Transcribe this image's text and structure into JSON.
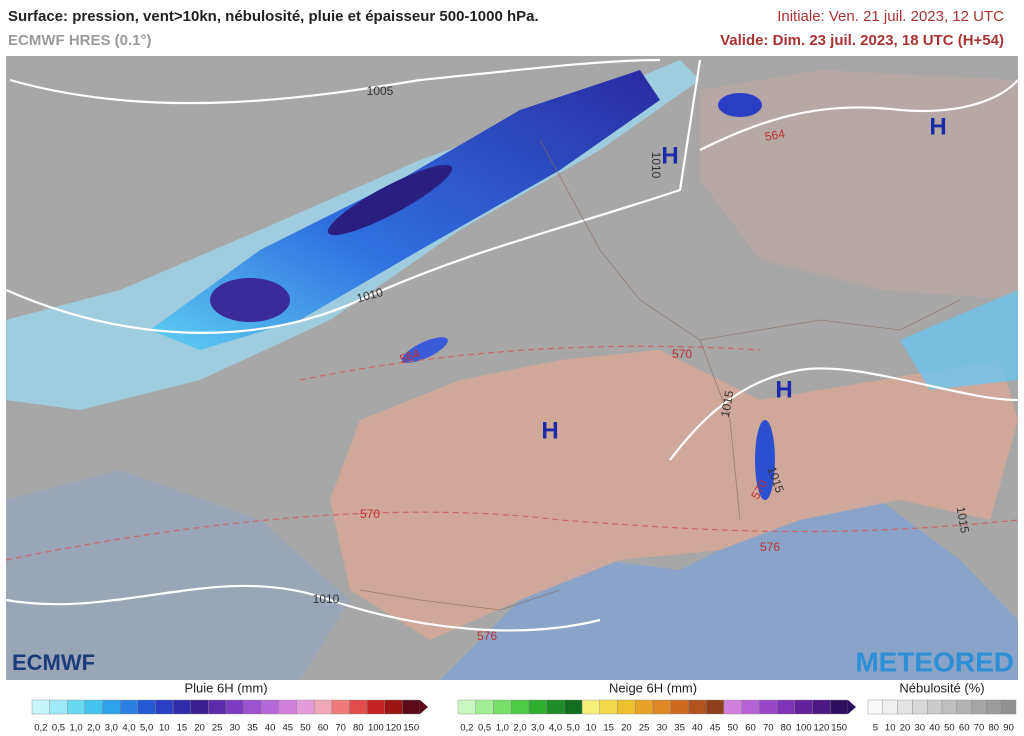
{
  "header": {
    "title": "Surface: pression, vent>10kn, nébulosité, pluie et épaisseur 500-1000 hPa.",
    "subtitle": "ECMWF HRES (0.1°)",
    "initial": "Initiale: Ven. 21 juil. 2023, 12 UTC",
    "valid": "Valide: Dim. 23 juil. 2023, 18 UTC (H+54)"
  },
  "map": {
    "pressure_centers": [
      "H",
      "H",
      "H",
      "H"
    ],
    "isobar_labels": [
      "1005",
      "1010",
      "1010",
      "1010",
      "1015",
      "1015",
      "1015"
    ],
    "thickness_labels": [
      "564",
      "564",
      "570",
      "570",
      "570",
      "576",
      "576"
    ]
  },
  "logos": {
    "left": "ECMWF",
    "right": "METEORED"
  },
  "legends": [
    {
      "title": "Pluie 6H (mm)",
      "labels": [
        "0,2",
        "0,5",
        "1,0",
        "2,0",
        "3,0",
        "4,0",
        "5,0",
        "10",
        "15",
        "20",
        "25",
        "30",
        "35",
        "40",
        "45",
        "50",
        "60",
        "70",
        "80",
        "100",
        "120",
        "150"
      ],
      "colors": [
        "#c8f4fb",
        "#9feaf8",
        "#6cd9f3",
        "#44c3f0",
        "#2fa2ec",
        "#2a7fe0",
        "#2558d3",
        "#2a3ec4",
        "#2f2aa8",
        "#3a1f8f",
        "#5a2aa8",
        "#7b3cc0",
        "#9b52cf",
        "#b768d8",
        "#d17fdb",
        "#e59ad9",
        "#f0a7b8",
        "#ee7a7a",
        "#e04b4b",
        "#c42323",
        "#9a1414",
        "#5c0a1a"
      ]
    },
    {
      "title": "Neige 6H (mm)",
      "labels": [
        "0,2",
        "0,5",
        "1,0",
        "2,0",
        "3,0",
        "4,0",
        "5,0",
        "10",
        "15",
        "20",
        "25",
        "30",
        "35",
        "40",
        "45",
        "50",
        "60",
        "70",
        "80",
        "100",
        "120",
        "150"
      ],
      "colors": [
        "#c9f7c0",
        "#a2ee95",
        "#78e06a",
        "#4ecb45",
        "#2fae2f",
        "#1f8e28",
        "#126e1e",
        "#f6f07a",
        "#f2d94a",
        "#eebf2f",
        "#e9a32a",
        "#df8626",
        "#cc6a22",
        "#b0531e",
        "#8e401a",
        "#d07fdc",
        "#b762d4",
        "#9a47c7",
        "#7e32b5",
        "#62229c",
        "#4a1783",
        "#2e0e5e"
      ]
    },
    {
      "title": "Nébulosité (%)",
      "labels": [
        "5",
        "10",
        "20",
        "30",
        "40",
        "50",
        "60",
        "70",
        "80",
        "90"
      ],
      "colors": [
        "#fafafa",
        "#f0f0f0",
        "#e4e4e4",
        "#d8d8d8",
        "#cbcbcb",
        "#bfbfbf",
        "#b3b3b3",
        "#a7a7a7",
        "#9c9c9c",
        "#919191"
      ]
    }
  ]
}
